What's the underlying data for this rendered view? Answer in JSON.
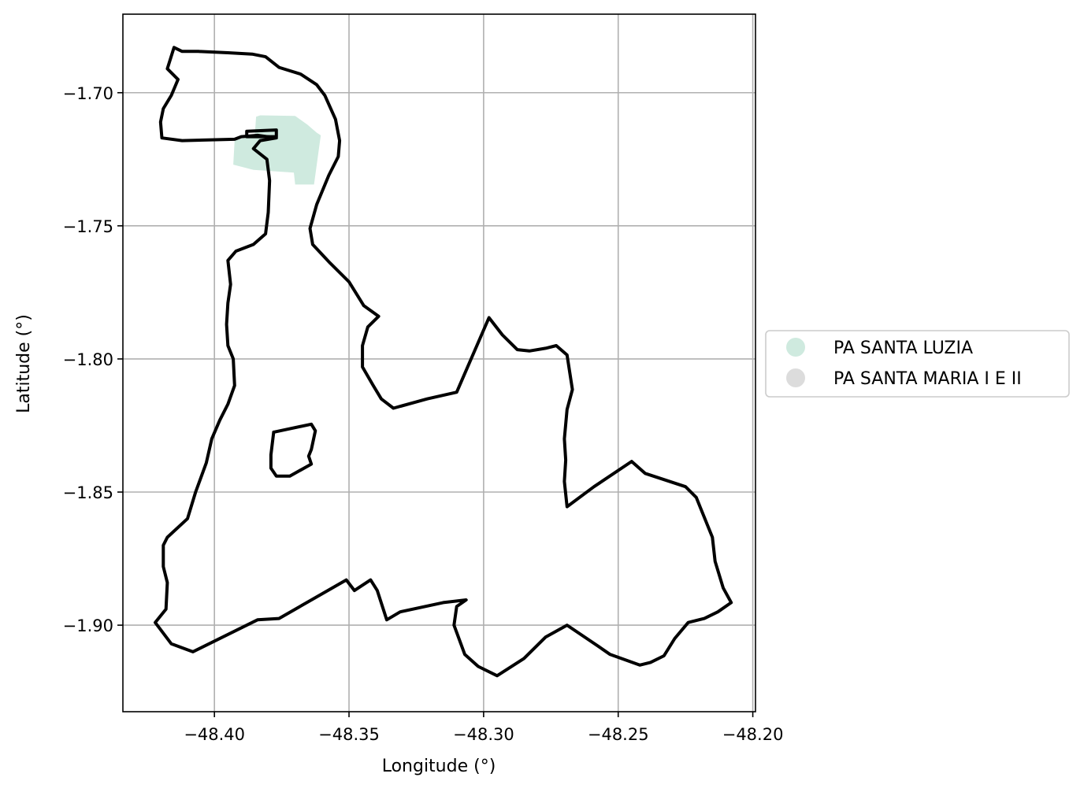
{
  "chart_data": {
    "type": "map",
    "xlabel": "Longitude (°)",
    "ylabel": "Latitude (°)",
    "xlim": [
      -48.434,
      -48.199
    ],
    "ylim": [
      -1.9325,
      -1.6705
    ],
    "x_ticks": [
      -48.4,
      -48.35,
      -48.3,
      -48.25,
      -48.2
    ],
    "y_ticks": [
      -1.7,
      -1.75,
      -1.8,
      -1.85,
      -1.9
    ],
    "x_tick_labels": [
      "−48.40",
      "−48.35",
      "−48.30",
      "−48.25",
      "−48.20"
    ],
    "y_tick_labels": [
      "−1.70",
      "−1.75",
      "−1.80",
      "−1.85",
      "−1.90"
    ],
    "grid": true,
    "legend_position": "right-center",
    "legend": [
      {
        "label": "PA SANTA LUZIA",
        "color": "#cfeadf"
      },
      {
        "label": "PA SANTA MARIA I E II",
        "color": "#dcdcdc"
      }
    ],
    "filled_areas": [
      {
        "series": "PA SANTA LUZIA",
        "color": "#cfeadf",
        "coords": [
          [
            -48.3845,
            -1.709
          ],
          [
            -48.383,
            -1.7085
          ],
          [
            -48.37,
            -1.7087
          ],
          [
            -48.3655,
            -1.712
          ],
          [
            -48.362,
            -1.715
          ],
          [
            -48.3605,
            -1.716
          ],
          [
            -48.363,
            -1.7345
          ],
          [
            -48.37,
            -1.7345
          ],
          [
            -48.3705,
            -1.73
          ],
          [
            -48.3855,
            -1.729
          ],
          [
            -48.393,
            -1.727
          ],
          [
            -48.3925,
            -1.718
          ],
          [
            -48.385,
            -1.716
          ]
        ]
      }
    ],
    "boundaries": [
      {
        "name": "outer",
        "coords": [
          [
            -48.415,
            -1.683
          ],
          [
            -48.412,
            -1.6845
          ],
          [
            -48.406,
            -1.6845
          ],
          [
            -48.395,
            -1.685
          ],
          [
            -48.386,
            -1.6855
          ],
          [
            -48.381,
            -1.6865
          ],
          [
            -48.376,
            -1.6905
          ],
          [
            -48.368,
            -1.693
          ],
          [
            -48.362,
            -1.697
          ],
          [
            -48.359,
            -1.701
          ],
          [
            -48.355,
            -1.71
          ],
          [
            -48.3535,
            -1.718
          ],
          [
            -48.354,
            -1.724
          ],
          [
            -48.3575,
            -1.731
          ],
          [
            -48.362,
            -1.742
          ],
          [
            -48.3645,
            -1.751
          ],
          [
            -48.3635,
            -1.757
          ],
          [
            -48.357,
            -1.764
          ],
          [
            -48.35,
            -1.771
          ],
          [
            -48.3445,
            -1.78
          ],
          [
            -48.339,
            -1.784
          ],
          [
            -48.343,
            -1.788
          ],
          [
            -48.345,
            -1.795
          ],
          [
            -48.345,
            -1.803
          ],
          [
            -48.341,
            -1.81
          ],
          [
            -48.338,
            -1.815
          ],
          [
            -48.3335,
            -1.8185
          ],
          [
            -48.321,
            -1.815
          ],
          [
            -48.31,
            -1.8125
          ],
          [
            -48.298,
            -1.7845
          ],
          [
            -48.293,
            -1.791
          ],
          [
            -48.2875,
            -1.7965
          ],
          [
            -48.283,
            -1.797
          ],
          [
            -48.277,
            -1.796
          ],
          [
            -48.273,
            -1.795
          ],
          [
            -48.269,
            -1.7985
          ],
          [
            -48.267,
            -1.8115
          ],
          [
            -48.269,
            -1.819
          ],
          [
            -48.27,
            -1.83
          ],
          [
            -48.2695,
            -1.838
          ],
          [
            -48.27,
            -1.846
          ],
          [
            -48.269,
            -1.8555
          ],
          [
            -48.259,
            -1.848
          ],
          [
            -48.245,
            -1.8385
          ],
          [
            -48.24,
            -1.843
          ],
          [
            -48.225,
            -1.848
          ],
          [
            -48.221,
            -1.852
          ],
          [
            -48.215,
            -1.867
          ],
          [
            -48.214,
            -1.876
          ],
          [
            -48.211,
            -1.886
          ],
          [
            -48.208,
            -1.8915
          ],
          [
            -48.213,
            -1.895
          ],
          [
            -48.218,
            -1.8975
          ],
          [
            -48.224,
            -1.899
          ],
          [
            -48.229,
            -1.905
          ],
          [
            -48.233,
            -1.9115
          ],
          [
            -48.238,
            -1.914
          ],
          [
            -48.242,
            -1.915
          ],
          [
            -48.253,
            -1.911
          ],
          [
            -48.258,
            -1.9075
          ],
          [
            -48.269,
            -1.9
          ],
          [
            -48.277,
            -1.9045
          ],
          [
            -48.285,
            -1.9125
          ],
          [
            -48.295,
            -1.919
          ],
          [
            -48.302,
            -1.9155
          ],
          [
            -48.307,
            -1.911
          ],
          [
            -48.311,
            -1.9
          ],
          [
            -48.31,
            -1.893
          ],
          [
            -48.3065,
            -1.8905
          ],
          [
            -48.315,
            -1.8915
          ],
          [
            -48.331,
            -1.895
          ],
          [
            -48.336,
            -1.898
          ],
          [
            -48.3395,
            -1.887
          ],
          [
            -48.342,
            -1.883
          ],
          [
            -48.348,
            -1.887
          ],
          [
            -48.351,
            -1.883
          ],
          [
            -48.376,
            -1.8975
          ],
          [
            -48.384,
            -1.898
          ],
          [
            -48.408,
            -1.91
          ],
          [
            -48.416,
            -1.907
          ],
          [
            -48.422,
            -1.899
          ],
          [
            -48.418,
            -1.894
          ],
          [
            -48.4175,
            -1.884
          ],
          [
            -48.419,
            -1.878
          ],
          [
            -48.419,
            -1.87
          ],
          [
            -48.4175,
            -1.867
          ],
          [
            -48.41,
            -1.86
          ],
          [
            -48.407,
            -1.85
          ],
          [
            -48.403,
            -1.839
          ],
          [
            -48.401,
            -1.83
          ],
          [
            -48.398,
            -1.823
          ],
          [
            -48.395,
            -1.817
          ],
          [
            -48.3925,
            -1.81
          ],
          [
            -48.393,
            -1.8
          ],
          [
            -48.395,
            -1.795
          ],
          [
            -48.3955,
            -1.787
          ],
          [
            -48.395,
            -1.779
          ],
          [
            -48.394,
            -1.772
          ],
          [
            -48.395,
            -1.763
          ],
          [
            -48.392,
            -1.7595
          ],
          [
            -48.3855,
            -1.757
          ],
          [
            -48.381,
            -1.753
          ],
          [
            -48.38,
            -1.745
          ],
          [
            -48.3795,
            -1.733
          ],
          [
            -48.3805,
            -1.725
          ],
          [
            -48.3855,
            -1.721
          ],
          [
            -48.383,
            -1.718
          ],
          [
            -48.377,
            -1.717
          ],
          [
            -48.384,
            -1.716
          ],
          [
            -48.39,
            -1.7165
          ],
          [
            -48.3925,
            -1.7175
          ],
          [
            -48.412,
            -1.718
          ],
          [
            -48.4195,
            -1.717
          ],
          [
            -48.42,
            -1.711
          ],
          [
            -48.419,
            -1.706
          ],
          [
            -48.416,
            -1.701
          ],
          [
            -48.4135,
            -1.695
          ],
          [
            -48.4175,
            -1.691
          ],
          [
            -48.415,
            -1.683
          ]
        ]
      },
      {
        "name": "notch",
        "coords": [
          [
            -48.388,
            -1.7145
          ],
          [
            -48.377,
            -1.714
          ],
          [
            -48.377,
            -1.7165
          ],
          [
            -48.388,
            -1.7165
          ],
          [
            -48.388,
            -1.7145
          ]
        ]
      },
      {
        "name": "inner-hole",
        "coords": [
          [
            -48.378,
            -1.8275
          ],
          [
            -48.364,
            -1.8245
          ],
          [
            -48.3625,
            -1.827
          ],
          [
            -48.364,
            -1.834
          ],
          [
            -48.365,
            -1.8365
          ],
          [
            -48.364,
            -1.8395
          ],
          [
            -48.372,
            -1.844
          ],
          [
            -48.377,
            -1.844
          ],
          [
            -48.379,
            -1.841
          ],
          [
            -48.379,
            -1.836
          ],
          [
            -48.378,
            -1.8275
          ]
        ]
      }
    ]
  }
}
